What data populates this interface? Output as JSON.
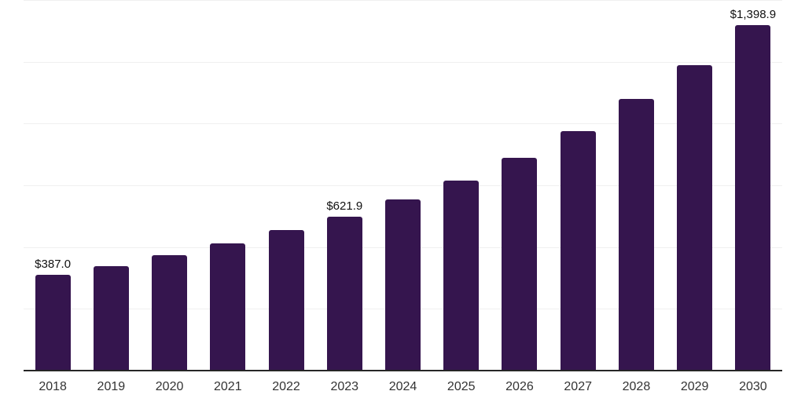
{
  "chart_data": {
    "type": "bar",
    "title": "",
    "xlabel": "",
    "ylabel": "",
    "categories": [
      "2018",
      "2019",
      "2020",
      "2021",
      "2022",
      "2023",
      "2024",
      "2025",
      "2026",
      "2027",
      "2028",
      "2029",
      "2030"
    ],
    "values": [
      387.0,
      423,
      467,
      515,
      568,
      621.9,
      693,
      769,
      861,
      970,
      1098,
      1235,
      1398.9
    ],
    "point_labels": [
      "$387.0",
      "",
      "",
      "",
      "",
      "$621.9",
      "",
      "",
      "",
      "",
      "",
      "",
      "$1,398.9"
    ],
    "ylim": [
      0,
      1500
    ],
    "gridline_step": 250,
    "grid": true,
    "y_tick_labels_visible": false,
    "legend_position": "none",
    "colors": {
      "bar": "#35154E",
      "axis": "#262626",
      "gridline": "#F0F0F0",
      "point_label_text": "#111111",
      "x_tick_text": "#333333",
      "background": "#FFFFFF"
    }
  }
}
